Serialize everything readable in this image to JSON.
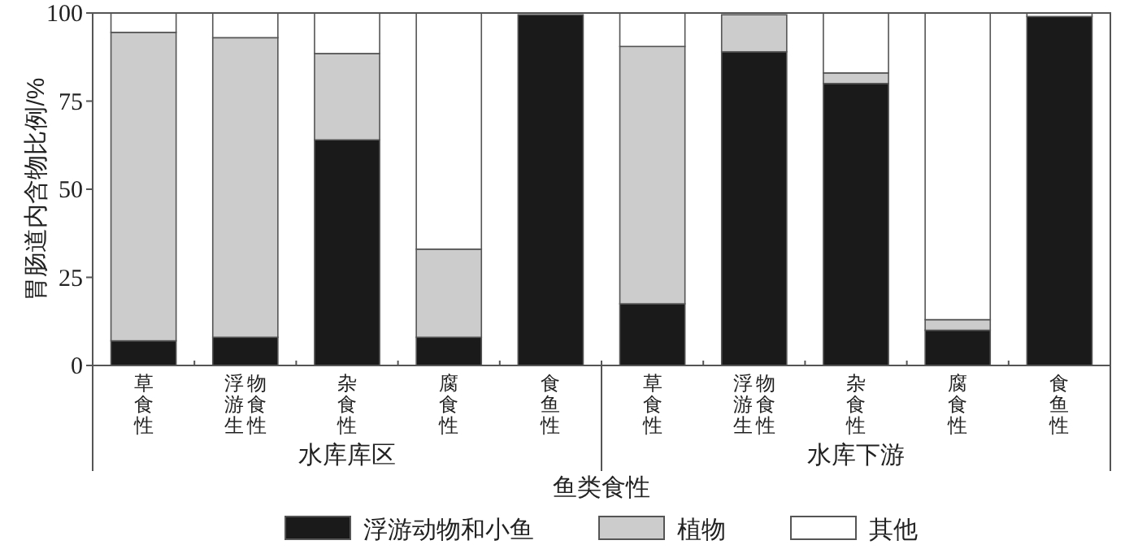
{
  "chart_data": {
    "type": "bar",
    "stacked": true,
    "ylabel": "胃肠道内含物比例/%",
    "xlabel": "鱼类食性",
    "legend": "bottom",
    "grid": false,
    "categories": [
      "草食性",
      "浮游生物食性",
      "杂食性",
      "腐食性",
      "食鱼性",
      "草食性",
      "浮游生物食性",
      "杂食性",
      "腐食性",
      "食鱼性"
    ],
    "annotations": [
      "水库库区",
      "水库下游"
    ],
    "ylim": [
      0,
      100
    ],
    "yticks": [
      0,
      25,
      50,
      75,
      100
    ],
    "series": [
      {
        "name": "浮游动物和小鱼",
        "color": "#1a1a1a",
        "values": [
          7,
          8,
          64,
          8,
          99.5,
          17.5,
          89,
          80,
          10,
          99
        ]
      },
      {
        "name": "植物",
        "color": "#cccccc",
        "values": [
          87.5,
          85,
          24.5,
          25,
          0,
          73,
          10.5,
          3,
          3,
          0
        ]
      },
      {
        "name": "其他",
        "color": "#ffffff",
        "values": [
          5.5,
          7,
          11.5,
          67,
          null,
          9.5,
          null,
          17,
          87,
          1
        ]
      }
    ]
  }
}
